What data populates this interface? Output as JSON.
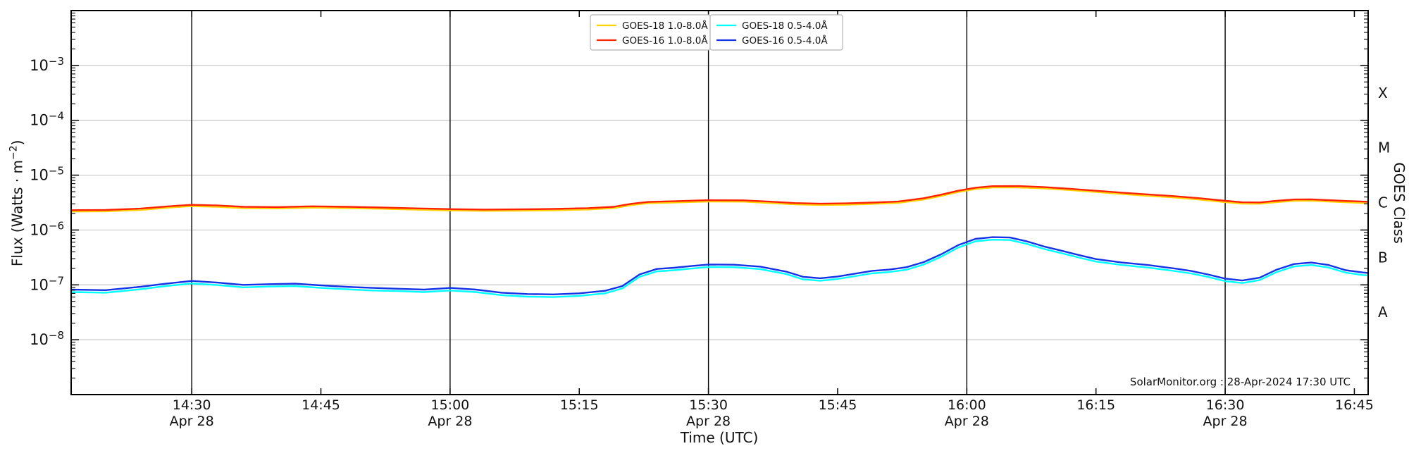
{
  "chart_data": {
    "type": "line",
    "title": "",
    "xlabel": "Time (UTC)",
    "ylabel": "Flux (Watts · m⁻²)",
    "ylabel_parts": {
      "prefix": "Flux (Watts · m",
      "sup": "−2",
      "suffix": ")"
    },
    "ylabel_right": "GOES Class",
    "annotation": "SolarMonitor.org : 28-Apr-2024 17:30 UTC",
    "x_unit": "minutes after 00:00 UTC, 28-Apr-2024",
    "xlim": [
      856,
      1006.6
    ],
    "ylim": [
      1e-09,
      0.01
    ],
    "yscale": "log",
    "grid": "horizontal decades light gray; vertical black lines each 30 min",
    "legend_position": "top-center, two adjacent boxes",
    "colors": {
      "grid": "#c8c8c8",
      "axis": "#000000",
      "background": "#ffffff"
    },
    "y_tick_exponents": [
      -3,
      -4,
      -5,
      -6,
      -7,
      -8
    ],
    "x_ticks": [
      {
        "t": 870,
        "label": "14:30",
        "date": "Apr 28",
        "line": true
      },
      {
        "t": 885,
        "label": "14:45"
      },
      {
        "t": 900,
        "label": "15:00",
        "date": "Apr 28",
        "line": true
      },
      {
        "t": 915,
        "label": "15:15"
      },
      {
        "t": 930,
        "label": "15:30",
        "date": "Apr 28",
        "line": true
      },
      {
        "t": 945,
        "label": "15:45"
      },
      {
        "t": 960,
        "label": "16:00",
        "date": "Apr 28",
        "line": true
      },
      {
        "t": 975,
        "label": "16:15"
      },
      {
        "t": 990,
        "label": "16:30",
        "date": "Apr 28",
        "line": true
      },
      {
        "t": 1005,
        "label": "16:45"
      }
    ],
    "goes_classes": [
      {
        "label": "X",
        "flux": 0.000316
      },
      {
        "label": "M",
        "flux": 3.16e-05
      },
      {
        "label": "C",
        "flux": 3.16e-06
      },
      {
        "label": "B",
        "flux": 3.16e-07
      },
      {
        "label": "A",
        "flux": 3.16e-08
      }
    ],
    "series": [
      {
        "name": "GOES-18 1.0-8.0Å",
        "color": "#ffd300",
        "width": 2.0,
        "x": [
          856,
          860,
          864,
          868,
          870,
          873,
          876,
          880,
          884,
          888,
          892,
          896,
          900,
          904,
          908,
          912,
          916,
          919,
          921,
          923,
          926,
          930,
          934,
          937,
          940,
          943,
          946,
          949,
          952,
          955,
          957,
          959,
          961,
          963,
          966,
          969,
          972,
          975,
          978,
          981,
          984,
          987,
          990,
          992,
          994,
          996,
          998,
          1000,
          1002,
          1004,
          1006,
          1006.6
        ],
        "y": [
          2.16e-06,
          2.18e-06,
          2.3e-06,
          2.59e-06,
          2.71e-06,
          2.63e-06,
          2.49e-06,
          2.46e-06,
          2.54e-06,
          2.49e-06,
          2.42e-06,
          2.33e-06,
          2.26e-06,
          2.22e-06,
          2.24e-06,
          2.27e-06,
          2.35e-06,
          2.49e-06,
          2.82e-06,
          3.06e-06,
          3.15e-06,
          3.29e-06,
          3.27e-06,
          3.1e-06,
          2.91e-06,
          2.84e-06,
          2.88e-06,
          2.97e-06,
          3.1e-06,
          3.57e-06,
          4.14e-06,
          4.89e-06,
          5.55e-06,
          5.92e-06,
          5.94e-06,
          5.69e-06,
          5.31e-06,
          4.89e-06,
          4.51e-06,
          4.18e-06,
          3.9e-06,
          3.57e-06,
          3.2e-06,
          3.01e-06,
          2.99e-06,
          3.2e-06,
          3.38e-06,
          3.4e-06,
          3.29e-06,
          3.18e-06,
          3.1e-06,
          3.08e-06
        ]
      },
      {
        "name": "GOES-16 1.0-8.0Å",
        "color": "#ff2200",
        "width": 2.4,
        "x": [
          856,
          860,
          864,
          868,
          870,
          873,
          876,
          880,
          884,
          888,
          892,
          896,
          900,
          904,
          908,
          912,
          916,
          919,
          921,
          923,
          926,
          930,
          934,
          937,
          940,
          943,
          946,
          949,
          952,
          955,
          957,
          959,
          961,
          963,
          966,
          969,
          972,
          975,
          978,
          981,
          984,
          987,
          990,
          992,
          994,
          996,
          998,
          1000,
          1002,
          1004,
          1006,
          1006.6
        ],
        "y": [
          2.3e-06,
          2.32e-06,
          2.45e-06,
          2.75e-06,
          2.88e-06,
          2.8e-06,
          2.65e-06,
          2.62e-06,
          2.7e-06,
          2.65e-06,
          2.57e-06,
          2.48e-06,
          2.4e-06,
          2.36e-06,
          2.38e-06,
          2.42e-06,
          2.5e-06,
          2.65e-06,
          3e-06,
          3.25e-06,
          3.35e-06,
          3.5e-06,
          3.48e-06,
          3.3e-06,
          3.1e-06,
          3.02e-06,
          3.06e-06,
          3.16e-06,
          3.3e-06,
          3.8e-06,
          4.4e-06,
          5.2e-06,
          5.9e-06,
          6.3e-06,
          6.32e-06,
          6.05e-06,
          5.65e-06,
          5.2e-06,
          4.8e-06,
          4.45e-06,
          4.15e-06,
          3.8e-06,
          3.4e-06,
          3.2e-06,
          3.18e-06,
          3.4e-06,
          3.6e-06,
          3.62e-06,
          3.5e-06,
          3.38e-06,
          3.3e-06,
          3.28e-06
        ]
      },
      {
        "name": "GOES-18 0.5-4.0Å",
        "color": "#00ffff",
        "width": 2.4,
        "x": [
          856,
          860,
          864,
          867,
          870,
          873,
          876,
          879,
          882,
          885,
          888,
          891,
          894,
          897,
          900,
          903,
          906,
          909,
          912,
          915,
          918,
          920,
          922,
          924,
          926,
          928,
          930,
          933,
          936,
          939,
          941,
          943,
          945,
          947,
          949,
          951,
          953,
          955,
          957,
          959,
          961,
          963,
          965,
          967,
          969,
          971,
          973,
          975,
          978,
          981,
          984,
          986,
          988,
          990,
          992,
          994,
          996,
          998,
          1000,
          1002,
          1004,
          1006,
          1006.6
        ],
        "y": [
          7.4e-08,
          7.2e-08,
          8.3e-08,
          9.5e-08,
          1.06e-07,
          9.9e-08,
          9e-08,
          9.3e-08,
          9.5e-08,
          8.8e-08,
          8.3e-08,
          7.9e-08,
          7.7e-08,
          7.4e-08,
          7.9e-08,
          7.4e-08,
          6.5e-08,
          6.1e-08,
          6e-08,
          6.3e-08,
          7e-08,
          8.6e-08,
          1.4e-07,
          1.76e-07,
          1.85e-07,
          1.98e-07,
          2.12e-07,
          2.1e-07,
          1.94e-07,
          1.58e-07,
          1.26e-07,
          1.19e-07,
          1.28e-07,
          1.44e-07,
          1.62e-07,
          1.71e-07,
          1.89e-07,
          2.34e-07,
          3.24e-07,
          4.77e-07,
          6.21e-07,
          6.66e-07,
          6.57e-07,
          5.58e-07,
          4.5e-07,
          3.78e-07,
          3.15e-07,
          2.66e-07,
          2.3e-07,
          2.07e-07,
          1.8e-07,
          1.62e-07,
          1.4e-07,
          1.17e-07,
          1.08e-07,
          1.22e-07,
          1.71e-07,
          2.16e-07,
          2.3e-07,
          2.07e-07,
          1.67e-07,
          1.51e-07,
          1.49e-07
        ]
      },
      {
        "name": "GOES-16 0.5-4.0Å",
        "color": "#1533e6",
        "width": 2.4,
        "x": [
          856,
          860,
          864,
          867,
          870,
          873,
          876,
          879,
          882,
          885,
          888,
          891,
          894,
          897,
          900,
          903,
          906,
          909,
          912,
          915,
          918,
          920,
          922,
          924,
          926,
          928,
          930,
          933,
          936,
          939,
          941,
          943,
          945,
          947,
          949,
          951,
          953,
          955,
          957,
          959,
          961,
          963,
          965,
          967,
          969,
          971,
          973,
          975,
          978,
          981,
          984,
          986,
          988,
          990,
          992,
          994,
          996,
          998,
          1000,
          1002,
          1004,
          1006,
          1006.6
        ],
        "y": [
          8.2e-08,
          8e-08,
          9.2e-08,
          1.05e-07,
          1.18e-07,
          1.1e-07,
          1e-07,
          1.03e-07,
          1.05e-07,
          9.8e-08,
          9.2e-08,
          8.8e-08,
          8.5e-08,
          8.2e-08,
          8.8e-08,
          8.2e-08,
          7.2e-08,
          6.8e-08,
          6.7e-08,
          7e-08,
          7.8e-08,
          9.5e-08,
          1.55e-07,
          1.95e-07,
          2.05e-07,
          2.2e-07,
          2.35e-07,
          2.33e-07,
          2.15e-07,
          1.75e-07,
          1.4e-07,
          1.32e-07,
          1.42e-07,
          1.6e-07,
          1.8e-07,
          1.9e-07,
          2.1e-07,
          2.6e-07,
          3.6e-07,
          5.3e-07,
          6.9e-07,
          7.4e-07,
          7.3e-07,
          6.2e-07,
          5e-07,
          4.2e-07,
          3.5e-07,
          2.95e-07,
          2.55e-07,
          2.3e-07,
          2e-07,
          1.8e-07,
          1.55e-07,
          1.3e-07,
          1.2e-07,
          1.35e-07,
          1.9e-07,
          2.4e-07,
          2.55e-07,
          2.3e-07,
          1.85e-07,
          1.68e-07,
          1.65e-07
        ]
      }
    ]
  }
}
